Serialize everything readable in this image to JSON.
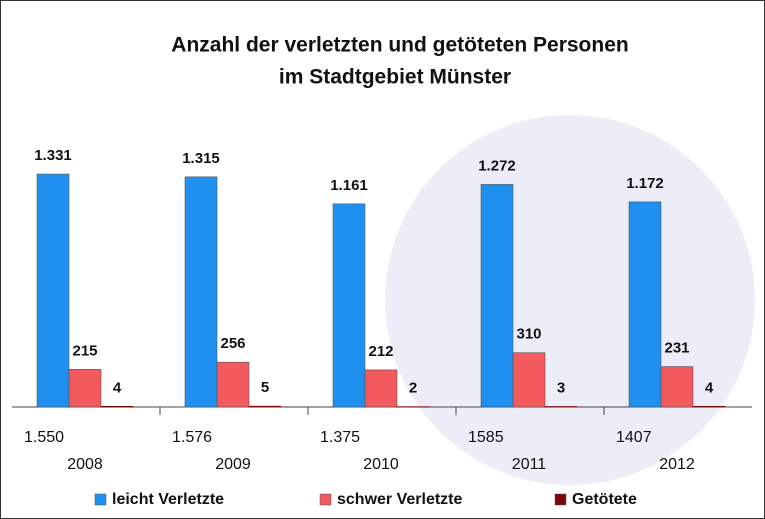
{
  "chart_data": {
    "type": "bar",
    "title": [
      "Anzahl der verletzten und getöteten Personen",
      "im Stadtgebiet Münster"
    ],
    "categories": [
      "2008",
      "2009",
      "2010",
      "2011",
      "2012"
    ],
    "totals": [
      "1.550",
      "1.576",
      "1.375",
      "1585",
      "1407"
    ],
    "series": [
      {
        "name": "leicht Verletzte",
        "color": "#1f8ff0",
        "values": [
          1331,
          1315,
          1161,
          1272,
          1172
        ],
        "value_labels": [
          "1.331",
          "1.315",
          "1.161",
          "1.272",
          "1.172"
        ]
      },
      {
        "name": "schwer Verletzte",
        "color": "#f25a5e",
        "values": [
          215,
          256,
          212,
          310,
          231
        ]
      },
      {
        "name": "Getötete",
        "color": "#7a0a0a",
        "values": [
          4,
          5,
          2,
          3,
          4
        ]
      }
    ],
    "ylim": [
      0,
      1500
    ]
  }
}
